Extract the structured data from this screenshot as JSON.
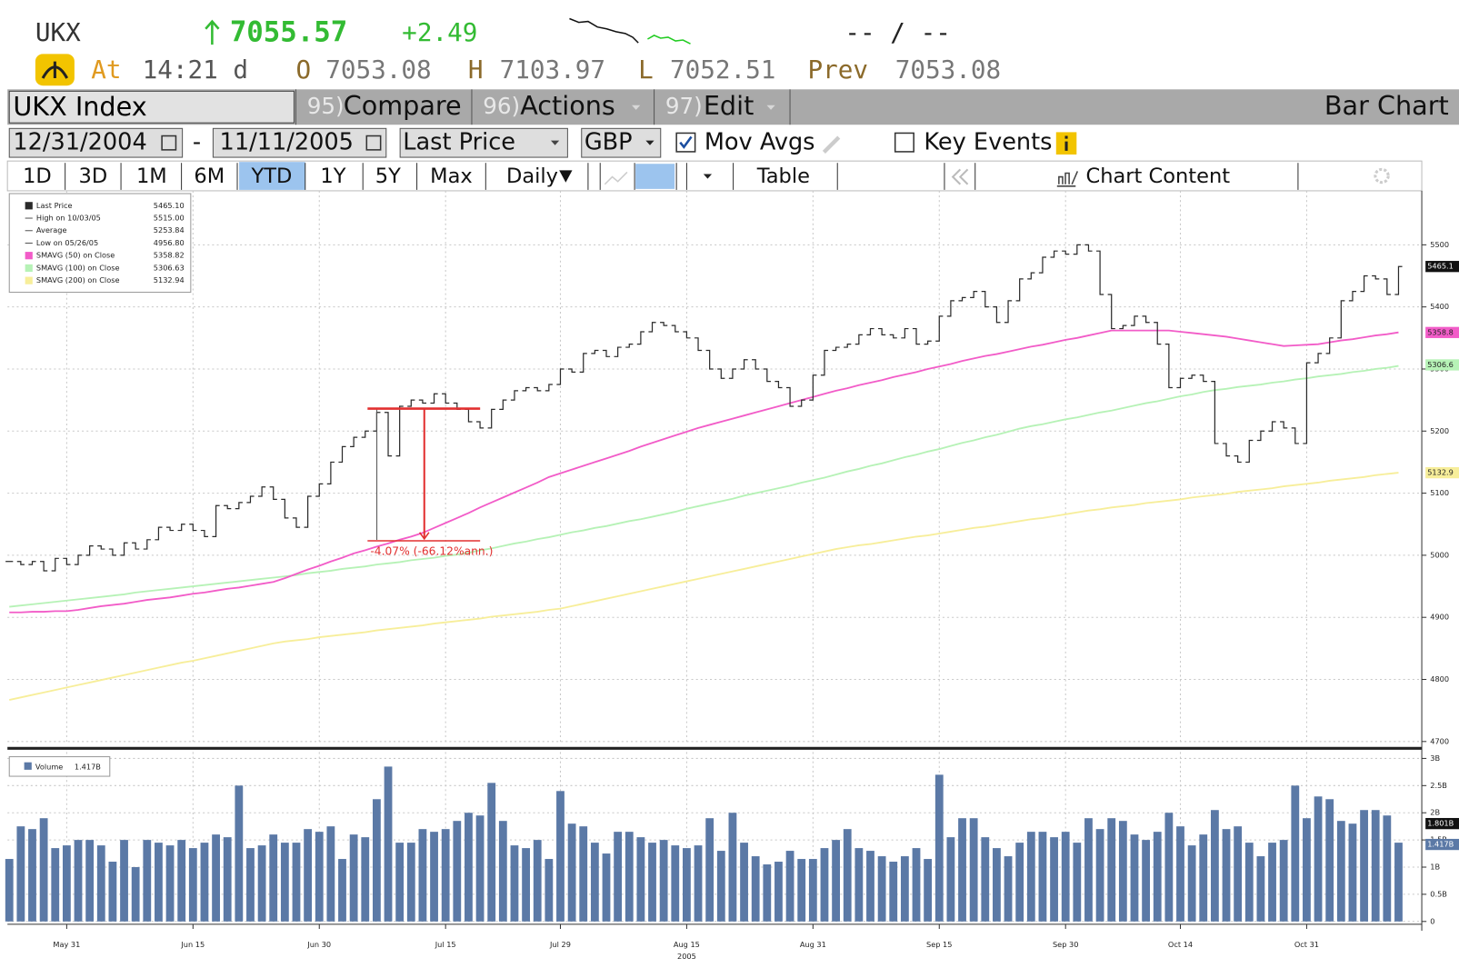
{
  "quote": {
    "symbol": "UKX",
    "price": "7055.57",
    "change": "+2.49",
    "bid_ask": "-- / --",
    "at": "At",
    "time": "14:21 d",
    "open_label": "O",
    "open": "7053.08",
    "high_label": "H",
    "high": "7103.97",
    "low_label": "L",
    "low": "7052.51",
    "prev_label": "Prev",
    "prev": "7053.08"
  },
  "toolbar": {
    "security": "UKX Index",
    "menus": [
      {
        "number": "95)",
        "label": "Compare"
      },
      {
        "number": "96)",
        "label": "Actions"
      },
      {
        "number": "97)",
        "label": "Edit"
      }
    ],
    "chart_kind": "Bar Chart",
    "start_date": "12/31/2004",
    "date_sep": "-",
    "end_date": "11/11/2005",
    "field": "Last Price",
    "currency": "GBP",
    "mov_avgs": "Mov Avgs",
    "key_events": "Key Events",
    "periods": [
      "1D",
      "3D",
      "1M",
      "6M",
      "YTD",
      "1Y",
      "5Y",
      "Max"
    ],
    "frequency": "Daily",
    "table": "Table",
    "chart_content": "Chart Content"
  },
  "chart_data": [
    {
      "type": "line",
      "grid": true,
      "ylim": [
        4695,
        5587
      ],
      "yticks": [
        4700,
        4800,
        4900,
        5000,
        5100,
        5200,
        5300,
        5400,
        5500
      ],
      "annotation": "-4.07% (-66.12%ann.)",
      "series": [
        {
          "name": "Last Price",
          "legend_value": "5465.10",
          "color": "#2a2a2a",
          "values": [
            4990,
            4985,
            4990,
            4975,
            4995,
            4985,
            5000,
            5015,
            5010,
            5000,
            5020,
            5010,
            5025,
            5045,
            5040,
            5050,
            5040,
            5030,
            5080,
            5075,
            5085,
            5095,
            5110,
            5090,
            5060,
            5045,
            5095,
            5115,
            5150,
            5175,
            5190,
            5200,
            5230,
            5160,
            5240,
            5250,
            5245,
            5260,
            5245,
            5235,
            5215,
            5205,
            5235,
            5250,
            5265,
            5270,
            5265,
            5275,
            5300,
            5295,
            5325,
            5330,
            5320,
            5335,
            5340,
            5360,
            5375,
            5370,
            5360,
            5350,
            5330,
            5300,
            5285,
            5300,
            5315,
            5300,
            5280,
            5270,
            5240,
            5250,
            5290,
            5330,
            5335,
            5340,
            5355,
            5365,
            5355,
            5350,
            5365,
            5340,
            5345,
            5385,
            5410,
            5415,
            5425,
            5400,
            5375,
            5410,
            5445,
            5455,
            5480,
            5490,
            5485,
            5500,
            5490,
            5420,
            5365,
            5370,
            5385,
            5375,
            5340,
            5270,
            5285,
            5290,
            5280,
            5180,
            5160,
            5150,
            5185,
            5200,
            5215,
            5205,
            5180,
            5310,
            5325,
            5350,
            5410,
            5425,
            5450,
            5445,
            5420,
            5465
          ]
        },
        {
          "name": "SMAVG (50) on Close",
          "legend_value": "5358.82",
          "color": "#f25cc8",
          "values": [
            4908,
            4908,
            4909,
            4909,
            4910,
            4910,
            4912,
            4915,
            4918,
            4920,
            4922,
            4925,
            4928,
            4930,
            4932,
            4935,
            4938,
            4940,
            4943,
            4946,
            4948,
            4951,
            4954,
            4957,
            4963,
            4970,
            4977,
            4983,
            4990,
            4996,
            5003,
            5008,
            5014,
            5019,
            5025,
            5030,
            5036,
            5044,
            5052,
            5060,
            5068,
            5077,
            5085,
            5093,
            5101,
            5109,
            5117,
            5126,
            5132,
            5138,
            5144,
            5150,
            5156,
            5162,
            5168,
            5175,
            5181,
            5187,
            5193,
            5199,
            5205,
            5210,
            5215,
            5220,
            5225,
            5230,
            5235,
            5240,
            5245,
            5250,
            5255,
            5260,
            5265,
            5269,
            5274,
            5278,
            5282,
            5287,
            5291,
            5295,
            5300,
            5304,
            5308,
            5313,
            5317,
            5321,
            5324,
            5328,
            5332,
            5336,
            5339,
            5343,
            5347,
            5350,
            5354,
            5358,
            5362,
            5362,
            5362,
            5362,
            5362,
            5362,
            5360,
            5358,
            5356,
            5354,
            5352,
            5349,
            5346,
            5343,
            5340,
            5337,
            5338,
            5339,
            5340,
            5343,
            5346,
            5348,
            5351,
            5354,
            5356,
            5359
          ]
        },
        {
          "name": "SMAVG (100) on Close",
          "legend_value": "5306.63",
          "color": "#b6f2b6",
          "values": [
            4917,
            4919,
            4921,
            4923,
            4925,
            4927,
            4929,
            4931,
            4933,
            4935,
            4937,
            4940,
            4942,
            4944,
            4946,
            4948,
            4950,
            4952,
            4954,
            4956,
            4958,
            4960,
            4962,
            4964,
            4966,
            4968,
            4971,
            4973,
            4975,
            4978,
            4980,
            4982,
            4985,
            4987,
            4989,
            4992,
            4994,
            4996,
            4999,
            5001,
            5004,
            5008,
            5011,
            5015,
            5019,
            5022,
            5026,
            5029,
            5033,
            5037,
            5040,
            5044,
            5047,
            5051,
            5055,
            5058,
            5062,
            5066,
            5070,
            5075,
            5079,
            5083,
            5087,
            5091,
            5096,
            5100,
            5104,
            5108,
            5112,
            5117,
            5121,
            5125,
            5130,
            5135,
            5139,
            5144,
            5148,
            5153,
            5158,
            5162,
            5167,
            5171,
            5176,
            5181,
            5185,
            5190,
            5194,
            5199,
            5204,
            5208,
            5211,
            5215,
            5219,
            5222,
            5226,
            5230,
            5233,
            5237,
            5241,
            5245,
            5248,
            5252,
            5256,
            5259,
            5263,
            5266,
            5268,
            5271,
            5273,
            5275,
            5278,
            5280,
            5283,
            5285,
            5288,
            5290,
            5292,
            5295,
            5297,
            5300,
            5302,
            5305
          ]
        },
        {
          "name": "SMAVG (200) on Close",
          "legend_value": "5132.94",
          "color": "#f7ee9a",
          "values": [
            4767,
            4771,
            4775,
            4779,
            4783,
            4787,
            4791,
            4795,
            4799,
            4803,
            4807,
            4811,
            4815,
            4819,
            4823,
            4827,
            4830,
            4834,
            4838,
            4842,
            4846,
            4850,
            4854,
            4858,
            4861,
            4863,
            4865,
            4868,
            4870,
            4872,
            4874,
            4876,
            4879,
            4881,
            4883,
            4885,
            4887,
            4890,
            4892,
            4894,
            4896,
            4898,
            4901,
            4903,
            4905,
            4907,
            4909,
            4912,
            4914,
            4918,
            4922,
            4926,
            4930,
            4934,
            4938,
            4942,
            4946,
            4950,
            4954,
            4958,
            4962,
            4966,
            4970,
            4974,
            4978,
            4982,
            4986,
            4990,
            4994,
            4998,
            5002,
            5006,
            5010,
            5013,
            5016,
            5018,
            5021,
            5024,
            5027,
            5030,
            5032,
            5035,
            5038,
            5041,
            5044,
            5046,
            5049,
            5052,
            5055,
            5058,
            5060,
            5063,
            5066,
            5069,
            5072,
            5074,
            5077,
            5079,
            5081,
            5084,
            5086,
            5088,
            5090,
            5093,
            5095,
            5097,
            5099,
            5102,
            5104,
            5106,
            5108,
            5111,
            5113,
            5115,
            5117,
            5120,
            5122,
            5124,
            5126,
            5129,
            5131,
            5133
          ]
        }
      ],
      "stats": [
        {
          "name": "High on 10/03/05",
          "value": "5515.00"
        },
        {
          "name": "Average",
          "value": "5253.84"
        },
        {
          "name": "Low on 05/26/05",
          "value": "4956.80"
        }
      ],
      "tags": [
        {
          "value": 5465.1,
          "color": "#111111"
        },
        {
          "value": 5358.8,
          "color": "#f25cc8"
        },
        {
          "value": 5306.6,
          "color": "#b6f2b6"
        },
        {
          "value": 5132.9,
          "color": "#f7ee9a"
        }
      ]
    },
    {
      "type": "bar",
      "grid": true,
      "name": "Volume",
      "legend_value": "1.417B",
      "color": "#5b79a6",
      "categories": [
        null,
        null,
        null,
        null,
        null,
        "May 31",
        null,
        null,
        null,
        null,
        null,
        null,
        null,
        null,
        null,
        null,
        "Jun 15",
        null,
        null,
        null,
        null,
        null,
        null,
        null,
        null,
        null,
        null,
        "Jun 30",
        null,
        null,
        null,
        null,
        null,
        null,
        null,
        null,
        null,
        null,
        "Jul 15",
        null,
        null,
        null,
        null,
        null,
        null,
        null,
        null,
        null,
        "Jul 29",
        null,
        null,
        null,
        null,
        null,
        null,
        null,
        null,
        null,
        null,
        "Aug 15",
        null,
        null,
        null,
        null,
        null,
        null,
        null,
        null,
        null,
        null,
        "Aug 31",
        null,
        null,
        null,
        null,
        null,
        null,
        null,
        null,
        null,
        null,
        "Sep 15",
        null,
        null,
        null,
        null,
        null,
        null,
        null,
        null,
        null,
        null,
        "Sep 30",
        null,
        null,
        null,
        null,
        null,
        null,
        null,
        null,
        null,
        "Oct 14",
        null,
        null,
        null,
        null,
        null,
        null,
        null,
        null,
        null,
        null,
        "Oct 31",
        null,
        null,
        null,
        null,
        null,
        null,
        null,
        null
      ],
      "year_label": "2005",
      "values": [
        1.15,
        1.75,
        1.7,
        1.9,
        1.35,
        1.4,
        1.5,
        1.5,
        1.4,
        1.1,
        1.5,
        1.0,
        1.5,
        1.45,
        1.4,
        1.5,
        1.35,
        1.45,
        1.6,
        1.55,
        2.5,
        1.35,
        1.4,
        1.6,
        1.45,
        1.45,
        1.7,
        1.65,
        1.75,
        1.15,
        1.6,
        1.55,
        2.25,
        2.85,
        1.45,
        1.45,
        1.7,
        1.65,
        1.7,
        1.85,
        2.0,
        1.95,
        2.55,
        1.85,
        1.4,
        1.35,
        1.5,
        1.15,
        2.4,
        1.8,
        1.75,
        1.45,
        1.25,
        1.65,
        1.65,
        1.55,
        1.45,
        1.5,
        1.4,
        1.35,
        1.4,
        1.9,
        1.3,
        2.0,
        1.45,
        1.2,
        1.05,
        1.1,
        1.3,
        1.15,
        1.15,
        1.35,
        1.5,
        1.7,
        1.35,
        1.3,
        1.2,
        1.1,
        1.2,
        1.35,
        1.15,
        2.7,
        1.55,
        1.9,
        1.9,
        1.55,
        1.35,
        1.2,
        1.45,
        1.65,
        1.65,
        1.55,
        1.65,
        1.45,
        1.9,
        1.7,
        1.9,
        1.85,
        1.6,
        1.5,
        1.65,
        2.0,
        1.75,
        1.4,
        1.6,
        2.05,
        1.7,
        1.75,
        1.45,
        1.2,
        1.45,
        1.5,
        2.5,
        1.9,
        2.3,
        2.25,
        1.85,
        1.8,
        2.05,
        2.05,
        1.95,
        1.45
      ],
      "ylim": [
        0,
        3.1
      ],
      "yticks": [
        0,
        {
          "value": 0.5,
          "label": "0.5B"
        },
        {
          "value": 1,
          "label": "1B"
        },
        {
          "value": 1.5,
          "label": "1.5B"
        },
        {
          "value": 2,
          "label": "2B"
        },
        {
          "value": 2.5,
          "label": "2.5B"
        },
        {
          "value": 3,
          "label": "3B"
        }
      ],
      "tags": [
        {
          "value": 1.801,
          "label": "1.801B",
          "color": "#111111"
        },
        {
          "value": 1.417,
          "label": "1.417B",
          "color": "#5b79a6"
        }
      ]
    }
  ]
}
